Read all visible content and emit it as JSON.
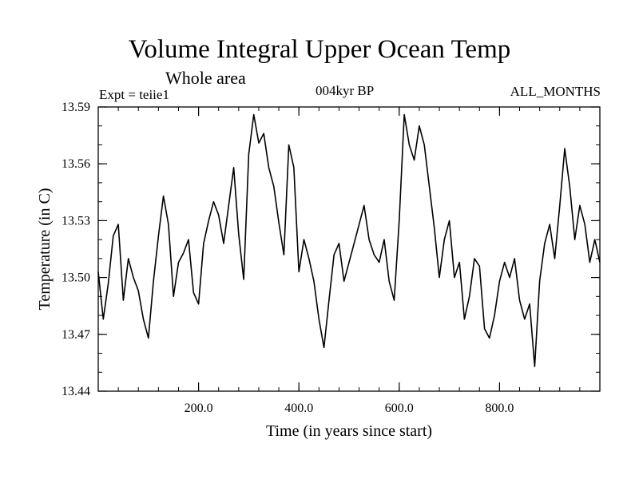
{
  "chart_data": {
    "type": "line",
    "title": "Volume Integral Upper Ocean Temp",
    "subtitle": "Whole area",
    "annotations": {
      "experiment": "Expt = teiie1",
      "period": "004kyr BP",
      "months": "ALL_MONTHS"
    },
    "xlabel": "Time (in years since start)",
    "ylabel": "Temperature (in C)",
    "xlim": [
      0,
      1000
    ],
    "ylim": [
      13.44,
      13.59
    ],
    "x_tick_values": [
      200,
      400,
      600,
      800
    ],
    "x_tick_labels": [
      "200.0",
      "400.0",
      "600.0",
      "800.0"
    ],
    "y_tick_values": [
      13.44,
      13.47,
      13.5,
      13.53,
      13.56,
      13.59
    ],
    "y_tick_labels": [
      "13.44",
      "13.47",
      "13.50",
      "13.53",
      "13.56",
      "13.59"
    ],
    "grid": false,
    "series": [
      {
        "x": [
          0,
          10,
          20,
          30,
          40,
          50,
          60,
          70,
          80,
          90,
          100,
          110,
          120,
          130,
          140,
          150,
          160,
          170,
          180,
          190,
          200,
          210,
          220,
          230,
          240,
          250,
          260,
          270,
          280,
          290,
          300,
          310,
          320,
          330,
          340,
          350,
          360,
          370,
          380,
          390,
          400,
          410,
          420,
          430,
          440,
          450,
          460,
          470,
          480,
          490,
          500,
          510,
          520,
          530,
          540,
          550,
          560,
          570,
          580,
          590,
          600,
          610,
          620,
          630,
          640,
          650,
          660,
          670,
          680,
          690,
          700,
          710,
          720,
          730,
          740,
          750,
          760,
          770,
          780,
          790,
          800,
          810,
          820,
          830,
          840,
          850,
          860,
          870,
          880,
          890,
          900,
          910,
          920,
          930,
          940,
          950,
          960,
          970,
          980,
          990,
          1000
        ],
        "values": [
          13.503,
          13.478,
          13.497,
          13.522,
          13.528,
          13.488,
          13.51,
          13.5,
          13.493,
          13.478,
          13.468,
          13.498,
          13.522,
          13.543,
          13.528,
          13.49,
          13.508,
          13.513,
          13.52,
          13.492,
          13.486,
          13.518,
          13.53,
          13.54,
          13.533,
          13.518,
          13.538,
          13.558,
          13.523,
          13.499,
          13.565,
          13.586,
          13.571,
          13.576,
          13.558,
          13.548,
          13.529,
          13.512,
          13.57,
          13.558,
          13.503,
          13.52,
          13.51,
          13.498,
          13.478,
          13.463,
          13.488,
          13.512,
          13.518,
          13.498,
          13.508,
          13.518,
          13.528,
          13.538,
          13.52,
          13.512,
          13.508,
          13.52,
          13.498,
          13.488,
          13.53,
          13.586,
          13.57,
          13.562,
          13.58,
          13.57,
          13.548,
          13.526,
          13.5,
          13.52,
          13.53,
          13.5,
          13.508,
          13.478,
          13.49,
          13.51,
          13.506,
          13.473,
          13.468,
          13.48,
          13.498,
          13.508,
          13.5,
          13.51,
          13.488,
          13.478,
          13.486,
          13.453,
          13.498,
          13.518,
          13.528,
          13.51,
          13.538,
          13.568,
          13.548,
          13.52,
          13.538,
          13.528,
          13.508,
          13.52,
          13.508
        ]
      }
    ]
  }
}
